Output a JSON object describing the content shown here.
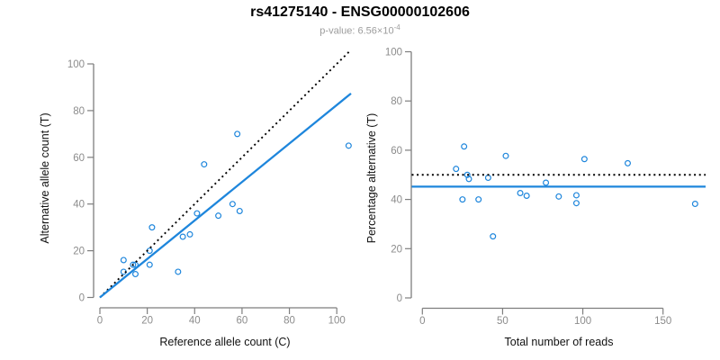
{
  "header": {
    "title": "rs41275140 - ENSG00000102606",
    "pvalue_prefix": "p-value: 6.56×10",
    "pvalue_exponent": "-4"
  },
  "colors": {
    "accent_blue": "#1E86DC",
    "line_black": "#000000",
    "axis_gray": "#7E7E7E",
    "tick_label_gray": "#8C8C8C",
    "axis_title_color": "#111111",
    "subtitle_gray": "#9C9C9C"
  },
  "chart_data": [
    {
      "id": "allele-count-scatter",
      "type": "scatter",
      "xlabel": "Reference allele count (C)",
      "ylabel": "Alternative allele count (T)",
      "x_ticks": [
        0,
        20,
        40,
        60,
        80,
        100
      ],
      "y_ticks": [
        0,
        20,
        40,
        60,
        80,
        100
      ],
      "xlim": [
        0,
        106
      ],
      "ylim": [
        0,
        106
      ],
      "grid": false,
      "points": [
        [
          10,
          16
        ],
        [
          10,
          11
        ],
        [
          14,
          14
        ],
        [
          15,
          14
        ],
        [
          15,
          10
        ],
        [
          21,
          14
        ],
        [
          21,
          20
        ],
        [
          22,
          30
        ],
        [
          33,
          11
        ],
        [
          35,
          26
        ],
        [
          38,
          27
        ],
        [
          41,
          36
        ],
        [
          44,
          57
        ],
        [
          50,
          35
        ],
        [
          56,
          40
        ],
        [
          59,
          37
        ],
        [
          58,
          70
        ],
        [
          105,
          65
        ]
      ],
      "lines": [
        {
          "name": "identity-line",
          "style": "dotted",
          "color_key": "line_black",
          "slope": 1,
          "intercept": 0
        },
        {
          "name": "fit-line",
          "style": "solid",
          "color_key": "accent_blue",
          "slope": 0.824,
          "intercept": 0
        }
      ]
    },
    {
      "id": "percentage-scatter",
      "type": "scatter",
      "xlabel": "Total number of reads",
      "ylabel": "Percentage alternative (T)",
      "x_ticks": [
        0,
        50,
        100,
        150
      ],
      "y_ticks": [
        0,
        20,
        40,
        60,
        80,
        100
      ],
      "xlim": [
        0,
        177
      ],
      "ylim": [
        0,
        104
      ],
      "grid": false,
      "points": [
        [
          26,
          61.5
        ],
        [
          21,
          52.4
        ],
        [
          28,
          50.0
        ],
        [
          29,
          48.3
        ],
        [
          25,
          40.0
        ],
        [
          35,
          40.0
        ],
        [
          41,
          48.8
        ],
        [
          52,
          57.7
        ],
        [
          44,
          25.0
        ],
        [
          61,
          42.6
        ],
        [
          65,
          41.5
        ],
        [
          77,
          46.8
        ],
        [
          101,
          56.4
        ],
        [
          85,
          41.2
        ],
        [
          96,
          41.7
        ],
        [
          96,
          38.5
        ],
        [
          128,
          54.7
        ],
        [
          170,
          38.2
        ]
      ],
      "lines": [
        {
          "name": "expected-50pct-line",
          "style": "dotted",
          "color_key": "line_black",
          "hline": 50
        },
        {
          "name": "mean-pct-line",
          "style": "solid",
          "color_key": "accent_blue",
          "hline": 45.2
        }
      ]
    }
  ]
}
